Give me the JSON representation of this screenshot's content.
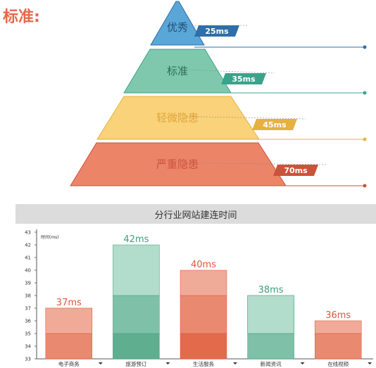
{
  "heading": "标准:",
  "pyramid": {
    "levels": [
      {
        "label": "优秀",
        "value": "25ms",
        "color": "#5aa6d6",
        "tag_color": "#2f6ea8",
        "text_color": "#1f4f7a"
      },
      {
        "label": "标准",
        "value": "35ms",
        "color": "#7fc8ad",
        "tag_color": "#3aa38c",
        "text_color": "#2e6b5b"
      },
      {
        "label": "轻微隐患",
        "value": "45ms",
        "color": "#f9d27a",
        "tag_color": "#e6b13e",
        "text_color": "#e0a53a"
      },
      {
        "label": "严重隐患",
        "value": "70ms",
        "color": "#ec8468",
        "tag_color": "#c9533b",
        "text_color": "#c9533b"
      }
    ]
  },
  "bar_section": {
    "title": "分行业网站建连时间"
  },
  "chart_data": {
    "type": "bar",
    "title": "分行业网站建连时间",
    "ylabel": "时间(ms)",
    "xlabel": "",
    "ylim": [
      33,
      43
    ],
    "yticks": [
      33,
      34,
      35,
      36,
      37,
      38,
      39,
      40,
      41,
      42,
      43
    ],
    "categories": [
      "电子商务",
      "旅游预订",
      "生活服务",
      "新闻资讯",
      "在线视频"
    ],
    "values": [
      37,
      42,
      40,
      38,
      36
    ],
    "value_labels": [
      "37ms",
      "42ms",
      "40ms",
      "38ms",
      "36ms"
    ],
    "colors": {
      "light": [
        "#f0aa98",
        "#b2dccb",
        "#f0aa98",
        "#b2dccb",
        "#f0aa98"
      ],
      "mid": [
        "#e98970",
        "#7fc0a8",
        "#e98970",
        "#7fc0a8",
        "#e98970"
      ],
      "dark": [
        "#e98970",
        "#5fae90",
        "#e46a4c",
        "#7fc0a8",
        "#e98970"
      ],
      "label": [
        "#d9583a",
        "#3c9e7c",
        "#d9583a",
        "#3c9e7c",
        "#d9583a"
      ]
    },
    "grid": false,
    "legend": "none"
  }
}
